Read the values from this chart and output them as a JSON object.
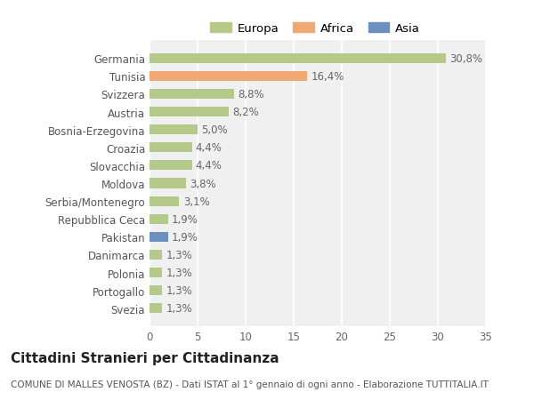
{
  "categories": [
    "Svezia",
    "Portogallo",
    "Polonia",
    "Danimarca",
    "Pakistan",
    "Repubblica Ceca",
    "Serbia/Montenegro",
    "Moldova",
    "Slovacchia",
    "Croazia",
    "Bosnia-Erzegovina",
    "Austria",
    "Svizzera",
    "Tunisia",
    "Germania"
  ],
  "values": [
    1.3,
    1.3,
    1.3,
    1.3,
    1.9,
    1.9,
    3.1,
    3.8,
    4.4,
    4.4,
    5.0,
    8.2,
    8.8,
    16.4,
    30.8
  ],
  "bar_colors": [
    "#b5c98a",
    "#b5c98a",
    "#b5c98a",
    "#b5c98a",
    "#6d8fc0",
    "#b5c98a",
    "#b5c98a",
    "#b5c98a",
    "#b5c98a",
    "#b5c98a",
    "#b5c98a",
    "#b5c98a",
    "#b5c98a",
    "#f0a875",
    "#b5c98a"
  ],
  "labels": [
    "1,3%",
    "1,3%",
    "1,3%",
    "1,3%",
    "1,9%",
    "1,9%",
    "3,1%",
    "3,8%",
    "4,4%",
    "4,4%",
    "5,0%",
    "8,2%",
    "8,8%",
    "16,4%",
    "30,8%"
  ],
  "legend_labels": [
    "Europa",
    "Africa",
    "Asia"
  ],
  "legend_colors": [
    "#b5c98a",
    "#f0a875",
    "#6d8fc0"
  ],
  "title": "Cittadini Stranieri per Cittadinanza",
  "subtitle": "COMUNE DI MALLES VENOSTA (BZ) - Dati ISTAT al 1° gennaio di ogni anno - Elaborazione TUTTITALIA.IT",
  "xlim": [
    0,
    35
  ],
  "xticks": [
    0,
    5,
    10,
    15,
    20,
    25,
    30,
    35
  ],
  "background_color": "#ffffff",
  "plot_bg_color": "#f0f0f0",
  "grid_color": "#ffffff",
  "bar_height": 0.55,
  "title_fontsize": 11,
  "subtitle_fontsize": 7.5,
  "label_fontsize": 8.5,
  "tick_fontsize": 8.5,
  "legend_fontsize": 9.5
}
